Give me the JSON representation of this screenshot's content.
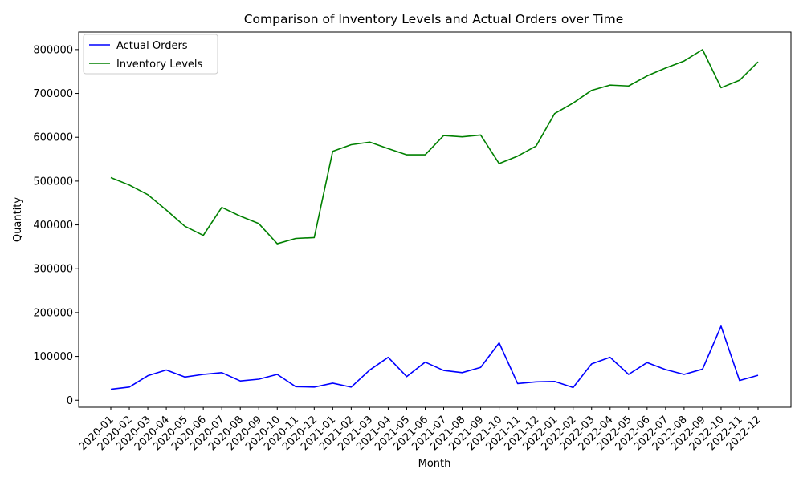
{
  "chart_data": {
    "type": "line",
    "title": "Comparison of Inventory Levels and Actual Orders over Time",
    "xlabel": "Month",
    "ylabel": "Quantity",
    "categories": [
      "2020-01",
      "2020-02",
      "2020-03",
      "2020-04",
      "2020-05",
      "2020-06",
      "2020-07",
      "2020-08",
      "2020-09",
      "2020-10",
      "2020-11",
      "2020-12",
      "2021-01",
      "2021-02",
      "2021-03",
      "2021-04",
      "2021-05",
      "2021-06",
      "2021-07",
      "2021-08",
      "2021-09",
      "2021-10",
      "2021-11",
      "2021-12",
      "2022-01",
      "2022-02",
      "2022-03",
      "2022-04",
      "2022-05",
      "2022-06",
      "2022-07",
      "2022-08",
      "2022-09",
      "2022-10",
      "2022-11",
      "2022-12"
    ],
    "series": [
      {
        "name": "Actual Orders",
        "color": "#0000ff",
        "values": [
          25000,
          30000,
          56000,
          69000,
          53000,
          59000,
          63000,
          44000,
          48000,
          59000,
          31000,
          30000,
          39000,
          30000,
          69000,
          98000,
          54000,
          87000,
          68000,
          63000,
          75000,
          131000,
          38000,
          42000,
          43000,
          29000,
          83000,
          98000,
          59000,
          86000,
          70000,
          59000,
          71000,
          169000,
          45000,
          57000
        ]
      },
      {
        "name": "Inventory Levels",
        "color": "#008000",
        "values": [
          508000,
          491000,
          469000,
          434000,
          397000,
          376000,
          440000,
          420000,
          403000,
          357000,
          369000,
          371000,
          568000,
          583000,
          589000,
          574000,
          560000,
          560000,
          604000,
          601000,
          605000,
          540000,
          557000,
          580000,
          654000,
          678000,
          707000,
          719000,
          717000,
          740000,
          758000,
          774000,
          800000,
          713000,
          730000,
          772000
        ]
      }
    ],
    "yticks": [
      0,
      100000,
      200000,
      300000,
      400000,
      500000,
      600000,
      700000,
      800000
    ],
    "ylim": [
      -16000,
      840000
    ],
    "grid": false,
    "legend_position": "top-left"
  }
}
